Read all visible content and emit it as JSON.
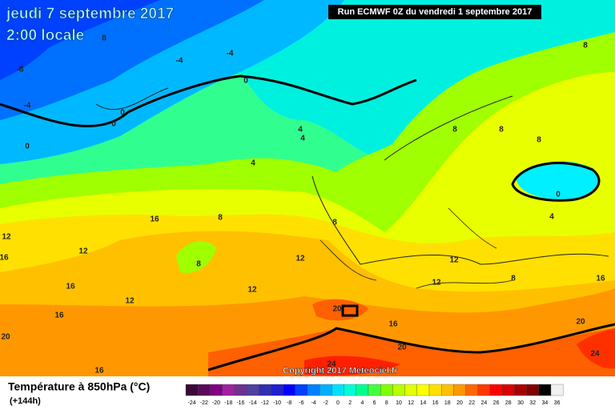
{
  "header": {
    "title": "jeudi 7 septembre 2017",
    "subtitle": "2:00 locale",
    "run": "Run ECMWF 0Z du vendredi 1 septembre 2017"
  },
  "map": {
    "copyright": "Copyright 2017 Meteociel.fr",
    "contour_labels": [
      "8",
      "-4",
      "-4",
      "-8",
      "-4",
      "0",
      "0",
      "0",
      "0",
      "8",
      "8",
      "8",
      "8",
      "4",
      "4",
      "4",
      "0",
      "4",
      "16",
      "8",
      "8",
      "12",
      "12",
      "16",
      "8",
      "12",
      "12",
      "16",
      "12",
      "12",
      "12",
      "8",
      "16",
      "16",
      "20",
      "16",
      "20",
      "20",
      "20",
      "24",
      "16",
      "24"
    ]
  },
  "legend": {
    "title": "Température à 850hPa (°C)",
    "subtitle": "(+144h)",
    "ticks": [
      -24,
      -22,
      -20,
      -18,
      -16,
      -14,
      -12,
      -10,
      -8,
      -6,
      -4,
      -2,
      0,
      2,
      4,
      6,
      8,
      10,
      12,
      14,
      16,
      18,
      20,
      22,
      24,
      26,
      28,
      30,
      32,
      34,
      36
    ],
    "colors": [
      "#3a0a3a",
      "#5a0a5a",
      "#800080",
      "#a020a0",
      "#703090",
      "#5040a0",
      "#3030b0",
      "#2020d0",
      "#0000ff",
      "#0040ff",
      "#0080ff",
      "#00b0ff",
      "#00e0ff",
      "#00ffd8",
      "#00ff90",
      "#40ff40",
      "#80ff00",
      "#b8ff00",
      "#e0ff00",
      "#ffff00",
      "#ffe000",
      "#ffc000",
      "#ff9800",
      "#ff6800",
      "#ff3800",
      "#ff0000",
      "#d80000",
      "#a80000",
      "#800000",
      "#000000",
      "#f0f0f0"
    ]
  }
}
